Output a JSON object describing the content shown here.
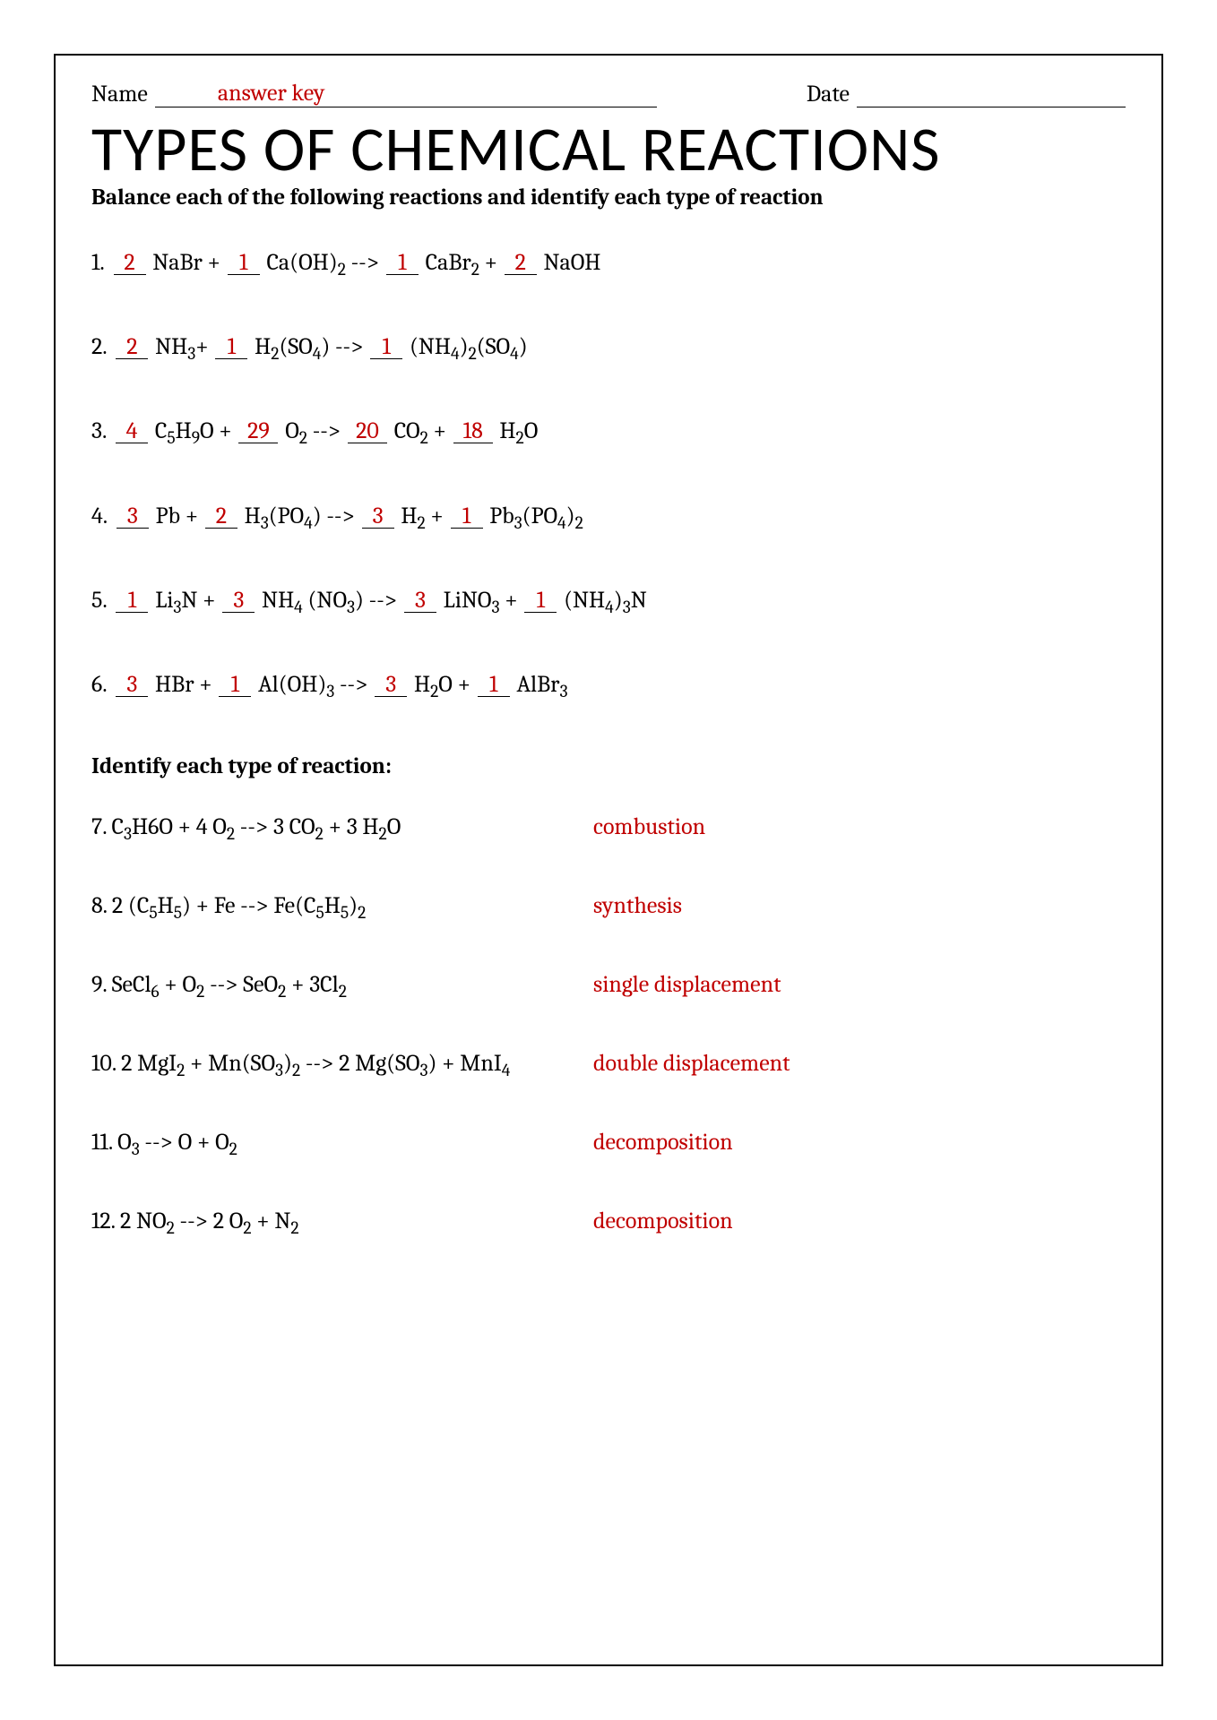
{
  "colors": {
    "answer": "#c00000",
    "text": "#000000",
    "border": "#000000",
    "background": "#ffffff"
  },
  "typography": {
    "title_font": "Segoe UI / Candara / Calibri, sans-serif",
    "title_size_pt": 52,
    "body_font": "Cambria, serif",
    "body_size_pt": 19,
    "instructions_bold": true
  },
  "header": {
    "name_label": "Name",
    "name_value": "answer key",
    "date_label": "Date",
    "date_value": ""
  },
  "title": "TYPES OF CHEMICAL REACTIONS",
  "instructions": "Balance each of the following reactions and identify each type of reaction",
  "balance_problems": [
    {
      "n": "1.",
      "coeffs": [
        "2",
        "1",
        "1",
        "2"
      ],
      "parts": [
        "NaBr +",
        "Ca(OH)₂ -->",
        "CaBr₂ +",
        "NaOH"
      ]
    },
    {
      "n": "2.",
      "coeffs": [
        "2",
        "1",
        "1"
      ],
      "parts": [
        "NH₃+",
        "H₂(SO₄) -->",
        "(NH₄)₂(SO₄)"
      ]
    },
    {
      "n": "3.",
      "coeffs": [
        "4",
        "29",
        "20",
        "18"
      ],
      "parts": [
        "C₅H₉O +",
        "O₂ -->",
        "CO₂ +",
        "H₂O"
      ]
    },
    {
      "n": "4.",
      "coeffs": [
        "3",
        "2",
        "3",
        "1"
      ],
      "parts": [
        "Pb +",
        "H₃(PO₄) -->",
        "H₂ +",
        "Pb₃(PO₄)₂"
      ]
    },
    {
      "n": "5.",
      "coeffs": [
        "1",
        "3",
        "3",
        "1"
      ],
      "parts": [
        "Li₃N +",
        "NH₄ (NO₃) -->",
        "LiNO₃ +",
        "(NH₄)₃N"
      ]
    },
    {
      "n": "6.",
      "coeffs": [
        "3",
        "1",
        "3",
        "1"
      ],
      "parts": [
        "HBr +",
        "Al(OH)₃ -->",
        "H₂O +",
        "AlBr₃"
      ]
    }
  ],
  "identify_heading": "Identify each type of reaction:",
  "identify_problems": [
    {
      "n": "7.",
      "eq": "C₃H6O + 4 O₂ --> 3 CO₂ + 3 H₂O",
      "answer": "combustion"
    },
    {
      "n": "8.",
      "eq": "2 (C₅H₅) + Fe --> Fe(C₅H₅)₂",
      "answer": "synthesis"
    },
    {
      "n": "9.",
      "eq": "SeCl₆ + O₂ --> SeO₂ + 3Cl₂",
      "answer": "single displacement"
    },
    {
      "n": "10.",
      "eq": "2 MgI₂ + Mn(SO₃)₂ --> 2 Mg(SO₃) + MnI₄",
      "answer": "double displacement"
    },
    {
      "n": "11.",
      "eq": "O₃ --> O + O₂",
      "answer": "decomposition"
    },
    {
      "n": "12.",
      "eq": "2 NO₂ --> 2 O₂ + N₂",
      "answer": "decomposition"
    }
  ]
}
